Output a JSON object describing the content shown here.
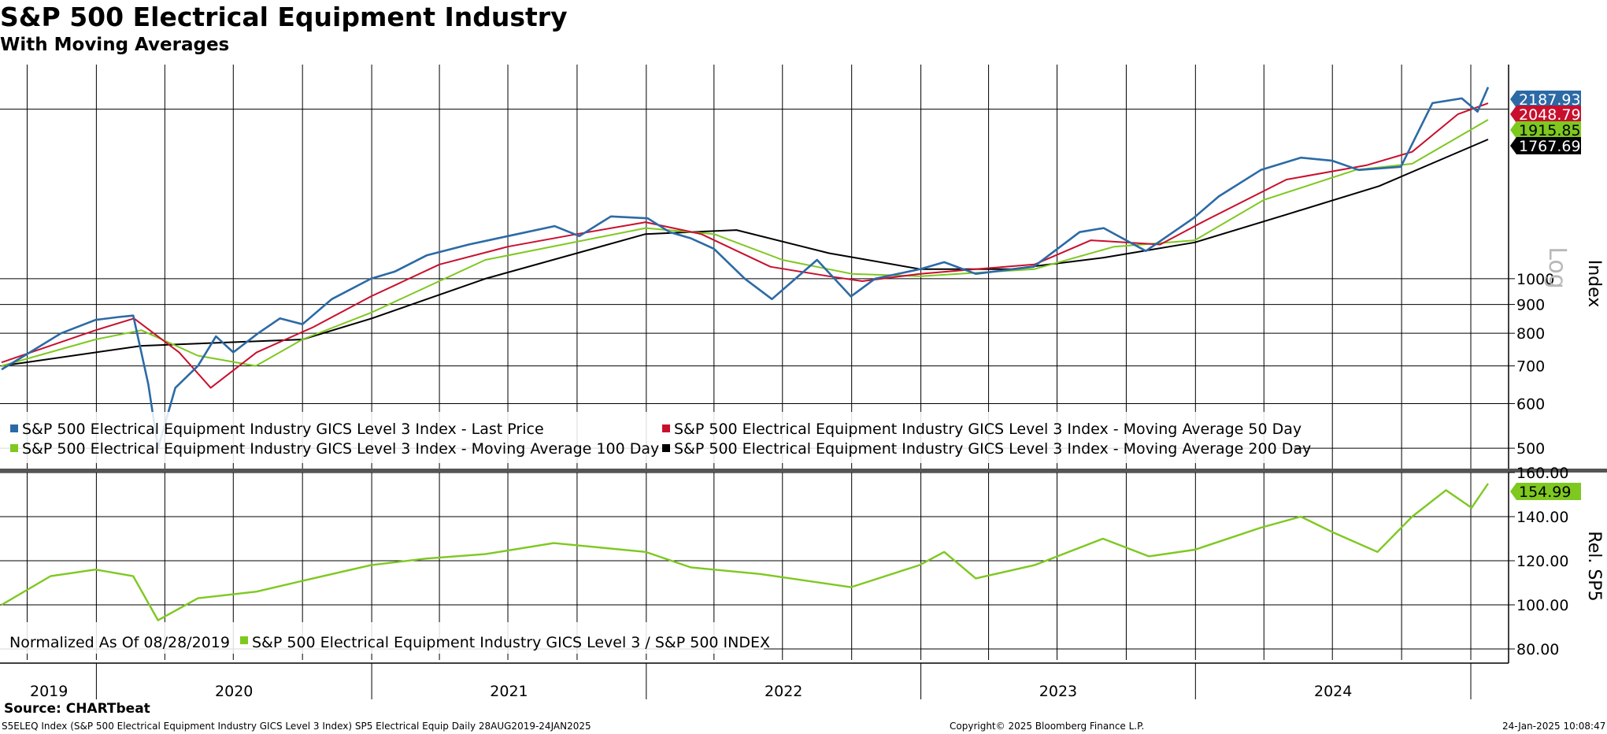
{
  "header": {
    "title": "S&P 500 Electrical Equipment Industry",
    "subtitle": "With Moving Averages"
  },
  "footer": {
    "source": "Source: CHARTbeat",
    "ticker_line": "S5ELEQ Index (S&P 500 Electrical Equipment Industry GICS Level 3 Index) SP5 Electrical Equip  Daily 28AUG2019-24JAN2025",
    "copyright": "Copyright© 2025 Bloomberg Finance L.P.",
    "timestamp": "24-Jan-2025 10:08:47"
  },
  "colors": {
    "last_price": "#2c6aa6",
    "ma50": "#c8102e",
    "ma100": "#7ec820",
    "ma200": "#000000",
    "relative": "#7ec820"
  },
  "chart_data": [
    {
      "type": "line",
      "scale": "log",
      "ylabel": "Index",
      "scale_label": "Log",
      "ylim": [
        460,
        2400
      ],
      "yticks": [
        500,
        600,
        700,
        800,
        900,
        1000
      ],
      "x_range": [
        "2019-08-28",
        "2025-01-24"
      ],
      "x_labels": [
        "2019",
        "2020",
        "2021",
        "2022",
        "2023",
        "2024"
      ],
      "grid": true,
      "legend_position": "bottom-left",
      "series": [
        {
          "name": "S&P 500 Electrical Equipment Industry GICS Level 3 Index - Last Price",
          "color": "#2c6aa6",
          "last_value": "2187.93",
          "points": [
            [
              "2019-08-28",
              690
            ],
            [
              "2019-10-01",
              735
            ],
            [
              "2019-11-15",
              800
            ],
            [
              "2019-12-31",
              845
            ],
            [
              "2020-01-31",
              855
            ],
            [
              "2020-02-19",
              860
            ],
            [
              "2020-03-10",
              650
            ],
            [
              "2020-03-23",
              500
            ],
            [
              "2020-04-15",
              640
            ],
            [
              "2020-05-15",
              700
            ],
            [
              "2020-06-08",
              790
            ],
            [
              "2020-07-01",
              740
            ],
            [
              "2020-08-03",
              800
            ],
            [
              "2020-09-01",
              850
            ],
            [
              "2020-10-01",
              830
            ],
            [
              "2020-11-09",
              920
            ],
            [
              "2020-12-31",
              1000
            ],
            [
              "2021-02-01",
              1030
            ],
            [
              "2021-03-15",
              1100
            ],
            [
              "2021-05-10",
              1150
            ],
            [
              "2021-07-01",
              1190
            ],
            [
              "2021-09-01",
              1240
            ],
            [
              "2021-10-04",
              1190
            ],
            [
              "2021-11-15",
              1290
            ],
            [
              "2022-01-03",
              1280
            ],
            [
              "2022-02-01",
              1210
            ],
            [
              "2022-03-01",
              1180
            ],
            [
              "2022-04-01",
              1130
            ],
            [
              "2022-05-12",
              1000
            ],
            [
              "2022-06-17",
              920
            ],
            [
              "2022-08-16",
              1080
            ],
            [
              "2022-09-30",
              930
            ],
            [
              "2022-11-01",
              1000
            ],
            [
              "2022-12-31",
              1040
            ],
            [
              "2023-02-01",
              1070
            ],
            [
              "2023-03-15",
              1020
            ],
            [
              "2023-05-31",
              1050
            ],
            [
              "2023-07-31",
              1210
            ],
            [
              "2023-09-01",
              1230
            ],
            [
              "2023-10-27",
              1120
            ],
            [
              "2023-12-29",
              1280
            ],
            [
              "2024-02-01",
              1400
            ],
            [
              "2024-03-28",
              1560
            ],
            [
              "2024-05-20",
              1640
            ],
            [
              "2024-07-01",
              1620
            ],
            [
              "2024-08-05",
              1560
            ],
            [
              "2024-09-30",
              1580
            ],
            [
              "2024-11-11",
              2050
            ],
            [
              "2024-12-20",
              2090
            ],
            [
              "2025-01-10",
              1980
            ],
            [
              "2025-01-24",
              2187.93
            ]
          ]
        },
        {
          "name": "S&P 500 Electrical Equipment Industry GICS Level 3 Index - Moving Average 50 Day",
          "color": "#c8102e",
          "last_value": "2048.79",
          "points": [
            [
              "2019-08-28",
              710
            ],
            [
              "2019-12-31",
              810
            ],
            [
              "2020-02-20",
              850
            ],
            [
              "2020-04-20",
              740
            ],
            [
              "2020-06-01",
              640
            ],
            [
              "2020-08-01",
              740
            ],
            [
              "2020-10-15",
              820
            ],
            [
              "2020-12-31",
              930
            ],
            [
              "2021-04-01",
              1060
            ],
            [
              "2021-07-01",
              1140
            ],
            [
              "2021-10-01",
              1200
            ],
            [
              "2021-12-31",
              1260
            ],
            [
              "2022-03-15",
              1200
            ],
            [
              "2022-06-15",
              1050
            ],
            [
              "2022-09-01",
              1010
            ],
            [
              "2022-10-15",
              990
            ],
            [
              "2022-12-31",
              1020
            ],
            [
              "2023-03-15",
              1040
            ],
            [
              "2023-06-01",
              1060
            ],
            [
              "2023-08-15",
              1170
            ],
            [
              "2023-11-15",
              1150
            ],
            [
              "2024-01-15",
              1270
            ],
            [
              "2024-05-01",
              1500
            ],
            [
              "2024-08-15",
              1590
            ],
            [
              "2024-10-15",
              1680
            ],
            [
              "2024-12-15",
              1960
            ],
            [
              "2025-01-24",
              2048.79
            ]
          ]
        },
        {
          "name": "S&P 500 Electrical Equipment Industry GICS Level 3 Index - Moving Average 100 Day",
          "color": "#7ec820",
          "last_value": "1915.85",
          "points": [
            [
              "2019-08-28",
              700
            ],
            [
              "2019-12-31",
              780
            ],
            [
              "2020-03-01",
              810
            ],
            [
              "2020-05-15",
              730
            ],
            [
              "2020-07-31",
              700
            ],
            [
              "2020-10-01",
              780
            ],
            [
              "2020-12-31",
              870
            ],
            [
              "2021-06-01",
              1080
            ],
            [
              "2021-12-31",
              1230
            ],
            [
              "2022-04-01",
              1200
            ],
            [
              "2022-07-01",
              1080
            ],
            [
              "2022-10-01",
              1020
            ],
            [
              "2023-01-01",
              1010
            ],
            [
              "2023-06-01",
              1040
            ],
            [
              "2023-09-15",
              1140
            ],
            [
              "2023-12-31",
              1170
            ],
            [
              "2024-04-01",
              1380
            ],
            [
              "2024-08-01",
              1560
            ],
            [
              "2024-10-15",
              1600
            ],
            [
              "2025-01-24",
              1915.85
            ]
          ]
        },
        {
          "name": "S&P 500 Electrical Equipment Industry GICS Level 3 Index - Moving Average 200 Day",
          "color": "#000000",
          "last_value": "1767.69",
          "points": [
            [
              "2019-08-28",
              700
            ],
            [
              "2020-03-01",
              760
            ],
            [
              "2020-10-01",
              780
            ],
            [
              "2021-01-01",
              850
            ],
            [
              "2021-06-01",
              1000
            ],
            [
              "2021-12-31",
              1200
            ],
            [
              "2022-05-01",
              1220
            ],
            [
              "2022-09-01",
              1110
            ],
            [
              "2022-12-31",
              1040
            ],
            [
              "2023-05-01",
              1040
            ],
            [
              "2023-09-01",
              1090
            ],
            [
              "2023-12-31",
              1160
            ],
            [
              "2024-05-01",
              1300
            ],
            [
              "2024-09-01",
              1460
            ],
            [
              "2025-01-24",
              1767.69
            ]
          ]
        }
      ]
    },
    {
      "type": "line",
      "scale": "linear",
      "ylabel": "Rel. SP5",
      "ylim": [
        75,
        160
      ],
      "yticks": [
        "80.00",
        "100.00",
        "120.00",
        "140.00",
        "160.00"
      ],
      "x_range": [
        "2019-08-28",
        "2025-01-24"
      ],
      "grid": true,
      "legend_position": "bottom-left",
      "note": "Normalized As Of 08/28/2019",
      "series": [
        {
          "name": "S&P 500 Electrical Equipment Industry GICS Level 3 / S&P 500 INDEX",
          "color": "#7ec820",
          "last_value": "154.99",
          "points": [
            [
              "2019-08-28",
              100
            ],
            [
              "2019-11-01",
              113
            ],
            [
              "2019-12-31",
              116
            ],
            [
              "2020-02-19",
              113
            ],
            [
              "2020-03-23",
              93
            ],
            [
              "2020-05-15",
              103
            ],
            [
              "2020-08-01",
              106
            ],
            [
              "2020-10-15",
              112
            ],
            [
              "2020-12-31",
              118
            ],
            [
              "2021-03-15",
              121
            ],
            [
              "2021-06-01",
              123
            ],
            [
              "2021-08-31",
              128
            ],
            [
              "2021-12-31",
              124
            ],
            [
              "2022-03-01",
              117
            ],
            [
              "2022-06-01",
              114
            ],
            [
              "2022-09-30",
              108
            ],
            [
              "2022-12-30",
              118
            ],
            [
              "2023-02-01",
              124
            ],
            [
              "2023-03-15",
              112
            ],
            [
              "2023-06-01",
              118
            ],
            [
              "2023-08-31",
              130
            ],
            [
              "2023-10-31",
              122
            ],
            [
              "2023-12-31",
              125
            ],
            [
              "2024-03-28",
              135
            ],
            [
              "2024-05-20",
              140
            ],
            [
              "2024-07-01",
              133
            ],
            [
              "2024-08-30",
              124
            ],
            [
              "2024-10-15",
              140
            ],
            [
              "2024-11-29",
              152
            ],
            [
              "2025-01-02",
              144
            ],
            [
              "2025-01-24",
              154.99
            ]
          ]
        }
      ]
    }
  ]
}
